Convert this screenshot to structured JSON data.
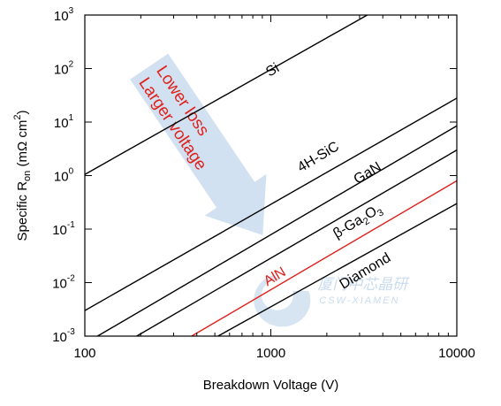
{
  "chart_data": {
    "type": "line",
    "xlabel": "Breakdown Voltage (V)",
    "ylabel_parts": {
      "main": "Specific R",
      "sub": "on",
      "units": " (mΩ cm",
      "units_sup": "2",
      "close": ")"
    },
    "x_scale": "log",
    "y_scale": "log",
    "xlim": [
      100,
      10000
    ],
    "ylim": [
      0.001,
      1000
    ],
    "grid": false,
    "x_ticks": [
      {
        "value": 100,
        "label": "100"
      },
      {
        "value": 1000,
        "label": "1000"
      },
      {
        "value": 10000,
        "label": "10000"
      }
    ],
    "y_ticks": [
      {
        "value": 0.001,
        "base": "10",
        "exp": "-3"
      },
      {
        "value": 0.01,
        "base": "10",
        "exp": "-2"
      },
      {
        "value": 0.1,
        "base": "10",
        "exp": "-1"
      },
      {
        "value": 1,
        "base": "10",
        "exp": "0"
      },
      {
        "value": 10,
        "base": "10",
        "exp": "1"
      },
      {
        "value": 100,
        "base": "10",
        "exp": "2"
      },
      {
        "value": 1000,
        "base": "10",
        "exp": "3"
      }
    ],
    "series": [
      {
        "name": "Si",
        "color": "#000000",
        "points": [
          [
            100,
            1.05
          ],
          [
            3300,
            1000
          ]
        ],
        "label_at": [
          1050,
          80
        ],
        "label_rotate": -31
      },
      {
        "name": "4H-SiC",
        "color": "#000000",
        "points": [
          [
            100,
            0.003
          ],
          [
            10000,
            28
          ]
        ],
        "label_at": [
          1850,
          1.9
        ],
        "label_rotate": -31
      },
      {
        "name": "GaN",
        "color": "#000000",
        "points": [
          [
            117,
            0.001
          ],
          [
            10000,
            8.5
          ]
        ],
        "label_at": [
          3400,
          0.95
        ],
        "label_rotate": -31
      },
      {
        "name_parts": [
          "β-Ga",
          "2",
          "O",
          "3"
        ],
        "color": "#000000",
        "points": [
          [
            190,
            0.001
          ],
          [
            10000,
            3
          ]
        ],
        "label_at": [
          3000,
          0.12
        ],
        "label_rotate": -31
      },
      {
        "name": "AlN",
        "color": "#e0201b",
        "points": [
          [
            375,
            0.001
          ],
          [
            10000,
            0.8
          ]
        ],
        "label_at": [
          1080,
          0.011
        ],
        "label_rotate": -31
      },
      {
        "name": "Diamond",
        "color": "#000000",
        "points": [
          [
            520,
            0.001
          ],
          [
            10000,
            0.3
          ]
        ],
        "label_at": [
          3300,
          0.014
        ],
        "label_rotate": -31
      }
    ],
    "annotation": {
      "lines": [
        "Lower loss",
        "Larger voltage"
      ],
      "color": "#e0201b",
      "arrow_color": "#c9dcee",
      "anchor": [
        340,
        12
      ],
      "rotate": 56
    },
    "watermark": {
      "cn": "厦门中芯晶研",
      "en": "CSW-XIAMEN",
      "color": "#c9dcee"
    }
  }
}
